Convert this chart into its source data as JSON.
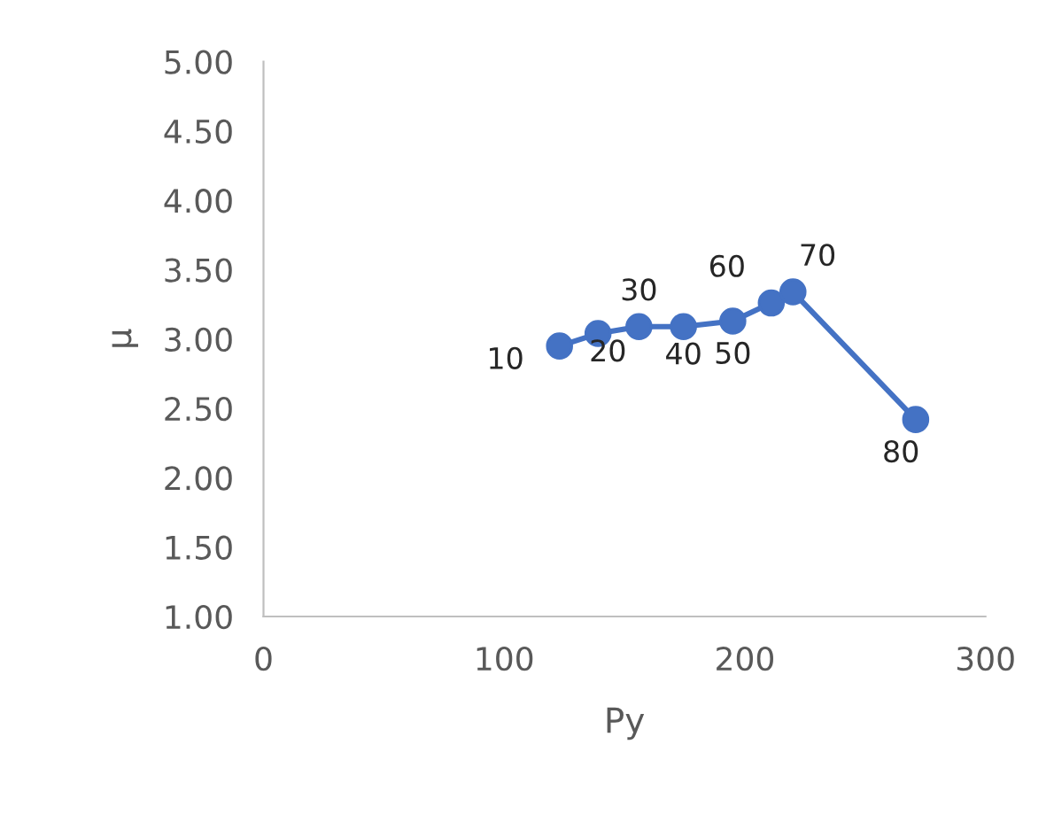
{
  "chart_data": {
    "type": "line",
    "xlabel": "Py",
    "ylabel": "μ",
    "x": [
      123,
      139,
      156,
      174.5,
      195,
      211,
      220,
      271
    ],
    "series": [
      {
        "color": "#4472c4",
        "values": [
          2.95,
          3.04,
          3.09,
          3.09,
          3.13,
          3.26,
          3.34,
          2.42
        ]
      }
    ],
    "marker": "circle",
    "line_style": "solid",
    "grid": false,
    "xlim": [
      0,
      300
    ],
    "xticks": [
      0,
      100,
      200,
      300
    ],
    "ylim": [
      1,
      5
    ],
    "yticks": [
      {
        "value": 1,
        "label": "1.00"
      },
      {
        "value": 1.5,
        "label": "1.50"
      },
      {
        "value": 2,
        "label": "2.00"
      },
      {
        "value": 2.5,
        "label": "2.50"
      },
      {
        "value": 3,
        "label": "3.00"
      },
      {
        "value": 3.5,
        "label": "3.50"
      },
      {
        "value": 4,
        "label": "4.00"
      },
      {
        "value": 4.5,
        "label": "4.50"
      },
      {
        "value": 5,
        "label": "5.00"
      }
    ],
    "annotations": [
      {
        "text": "10",
        "x": 123,
        "y": 2.95
      },
      {
        "text": "20",
        "x": 139,
        "y": 3.04
      },
      {
        "text": "30",
        "x": 156,
        "y": 3.09
      },
      {
        "text": "40",
        "x": 174.5,
        "y": 3.09
      },
      {
        "text": "50",
        "x": 195,
        "y": 3.13
      },
      {
        "text": "60",
        "x": 211,
        "y": 3.26
      },
      {
        "text": "70",
        "x": 220,
        "y": 3.34
      },
      {
        "text": "80",
        "x": 271,
        "y": 2.42
      }
    ]
  }
}
